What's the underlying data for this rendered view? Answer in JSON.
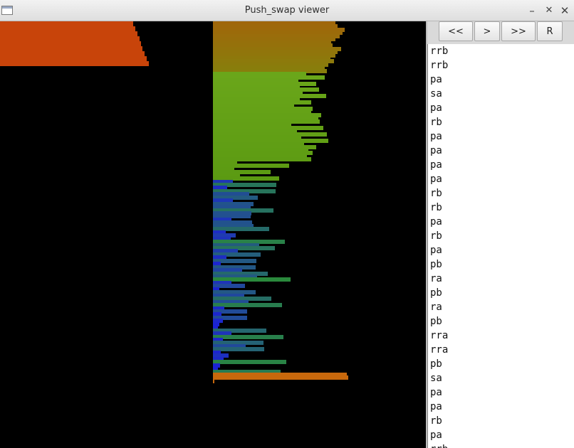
{
  "window": {
    "title": "Push_swap viewer"
  },
  "titlebar_icons": {
    "app": "window-icon",
    "minimize": "minimize-icon",
    "maximize": "maximize-icon",
    "close": "close-icon"
  },
  "titlebar_glyphs": {
    "minimize": "🗕",
    "maximize": "✕",
    "close": "✕"
  },
  "controls": {
    "prev_label": "<<",
    "step_label": ">",
    "next_label": ">>",
    "reset_label": "R"
  },
  "stack_b": {
    "color": "#c8440a",
    "values": [
      0.935,
      0.95,
      0.965,
      0.98,
      0.99,
      1.0,
      1.015,
      1.03,
      1.045
    ]
  },
  "stack_a": {
    "description_colors": [
      "#c86a0a",
      "#3b9e2b",
      "#1a3ccf"
    ],
    "values": [
      172,
      175,
      185,
      182,
      178,
      172,
      166,
      168,
      180,
      175,
      172,
      165,
      170,
      162,
      157,
      160,
      131,
      157,
      120,
      145,
      122,
      149,
      126,
      159,
      122,
      138,
      114,
      140,
      138,
      152,
      148,
      150,
      110,
      155,
      118,
      160,
      124,
      162,
      128,
      145,
      134,
      140,
      132,
      138,
      34,
      107,
      30,
      81,
      38,
      93,
      28,
      89,
      20,
      88,
      51,
      63,
      28,
      57,
      53,
      85,
      54,
      53,
      26,
      55,
      57,
      79,
      18,
      32,
      25,
      101,
      65,
      87,
      35,
      67,
      19,
      61,
      11,
      60,
      41,
      77,
      62,
      109,
      26,
      45,
      9,
      60,
      44,
      82,
      50,
      97,
      16,
      48,
      12,
      48,
      14,
      9,
      7,
      75,
      26,
      99,
      14,
      71,
      46,
      72,
      11,
      22,
      15,
      103,
      10,
      7,
      95,
      190,
      188,
      0
    ],
    "colors_by_index": "gradient"
  },
  "operations": [
    "rrb",
    "rrb",
    "pa",
    "sa",
    "pa",
    "rb",
    "pa",
    "pa",
    "pa",
    "pa",
    "rb",
    "rb",
    "pa",
    "rb",
    "pa",
    "pb",
    "ra",
    "pb",
    "ra",
    "pb",
    "rra",
    "rra",
    "pb",
    "sa",
    "pa",
    "pa",
    "rb",
    "pa",
    "rrb"
  ]
}
